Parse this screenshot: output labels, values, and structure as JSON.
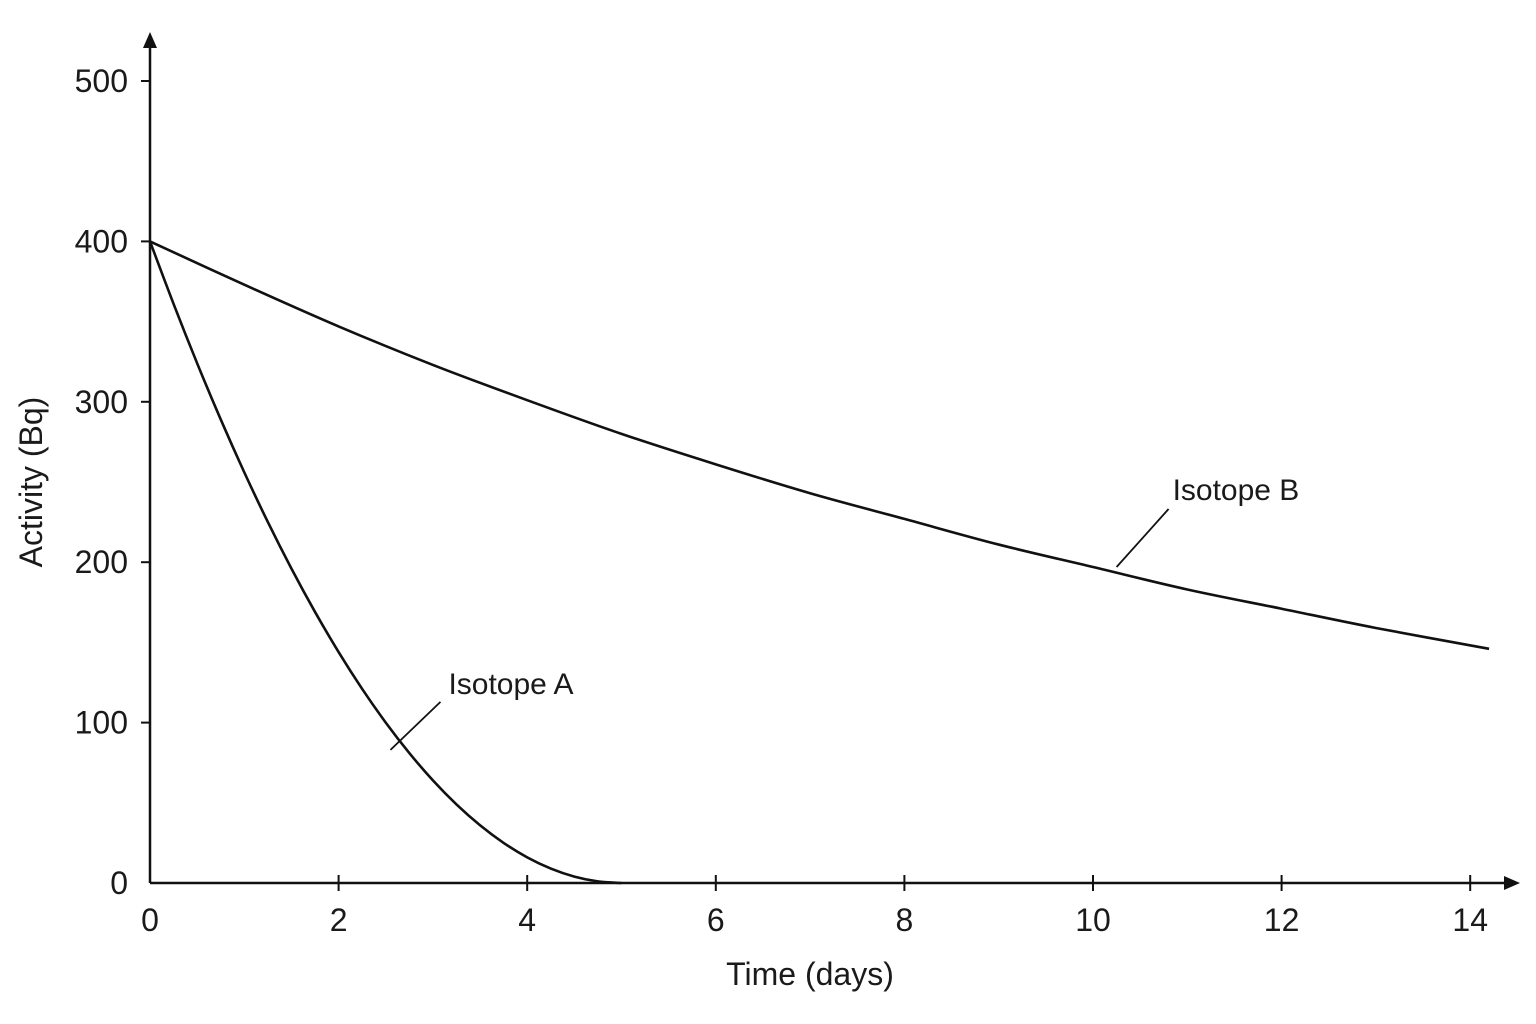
{
  "chart_data": {
    "type": "line",
    "title": "",
    "xlabel": "Time (days)",
    "ylabel": "Activity (Bq)",
    "xlim": [
      0,
      14.2
    ],
    "ylim": [
      0,
      500
    ],
    "xticks": [
      0,
      2,
      4,
      6,
      8,
      10,
      12,
      14
    ],
    "yticks": [
      0,
      100,
      200,
      300,
      400,
      500
    ],
    "grid": false,
    "legend": "none",
    "series": [
      {
        "name": "Isotope A",
        "x": [
          0,
          0.25,
          0.5,
          0.75,
          1,
          1.25,
          1.5,
          1.75,
          2,
          2.25,
          2.5,
          2.75,
          3,
          3.25,
          3.5,
          3.75,
          4,
          4.25,
          4.5,
          4.75,
          5
        ],
        "y": [
          400,
          361,
          324,
          289,
          256,
          225,
          196,
          169,
          144,
          121,
          100,
          81,
          64,
          49,
          36,
          25,
          16,
          9,
          4,
          1,
          0
        ],
        "label_anchor": {
          "x": 2.55,
          "y": 83
        }
      },
      {
        "name": "Isotope B",
        "x": [
          0,
          1,
          2,
          3,
          4,
          5,
          6,
          7,
          8,
          9,
          10,
          11,
          12,
          13,
          14.2
        ],
        "y": [
          400,
          373,
          347,
          323,
          301,
          280,
          261,
          243,
          227,
          211,
          197,
          183,
          171,
          159,
          146
        ],
        "label_anchor": {
          "x": 10.25,
          "y": 197
        }
      }
    ]
  }
}
